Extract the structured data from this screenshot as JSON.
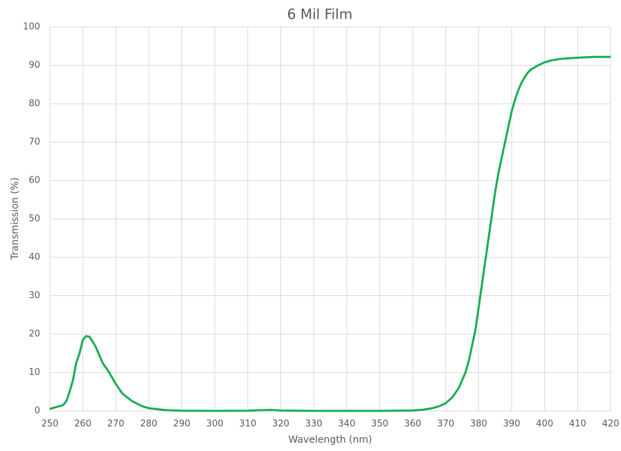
{
  "chart_data": {
    "type": "line",
    "title": "6 Mil Film",
    "xlabel": "Wavelength (nm)",
    "ylabel": "Transmission (%)",
    "x": [
      250,
      252,
      254,
      255,
      256,
      257,
      258,
      259,
      260,
      261,
      262,
      263,
      264,
      265,
      266,
      268,
      270,
      272,
      275,
      278,
      280,
      285,
      290,
      300,
      310,
      317,
      320,
      330,
      350,
      360,
      363,
      366,
      368,
      370,
      372,
      374,
      376,
      377,
      378,
      379,
      380,
      381,
      382,
      383,
      384,
      385,
      386,
      387,
      388,
      389,
      390,
      391,
      392,
      393,
      394,
      395,
      396,
      398,
      400,
      402,
      405,
      410,
      415,
      420
    ],
    "series": [
      {
        "name": "6 Mil Film",
        "color": "#17ad51",
        "values": [
          0.5,
          1,
          1.5,
          2.5,
          5,
          8,
          12.5,
          15,
          18.5,
          19.5,
          19.3,
          18,
          16.5,
          14.5,
          12.5,
          10,
          7,
          4.5,
          2.5,
          1.2,
          0.7,
          0.2,
          0.05,
          0,
          0.05,
          0.25,
          0.1,
          0,
          0,
          0.1,
          0.3,
          0.7,
          1.2,
          2,
          3.5,
          6,
          10,
          13,
          17,
          21,
          27,
          33,
          39,
          45,
          51,
          57,
          62,
          66,
          70,
          74,
          78,
          81,
          83.5,
          85.5,
          87,
          88.2,
          89,
          90,
          90.8,
          91.3,
          91.7,
          92,
          92.2,
          92.2
        ]
      }
    ],
    "xlim": [
      250,
      420
    ],
    "xticks": [
      250,
      260,
      270,
      280,
      290,
      300,
      310,
      320,
      330,
      340,
      350,
      360,
      370,
      380,
      390,
      400,
      410,
      420
    ],
    "ylim": [
      0,
      100
    ],
    "yticks": [
      0,
      10,
      20,
      30,
      40,
      50,
      60,
      70,
      80,
      90,
      100
    ],
    "grid": true
  }
}
